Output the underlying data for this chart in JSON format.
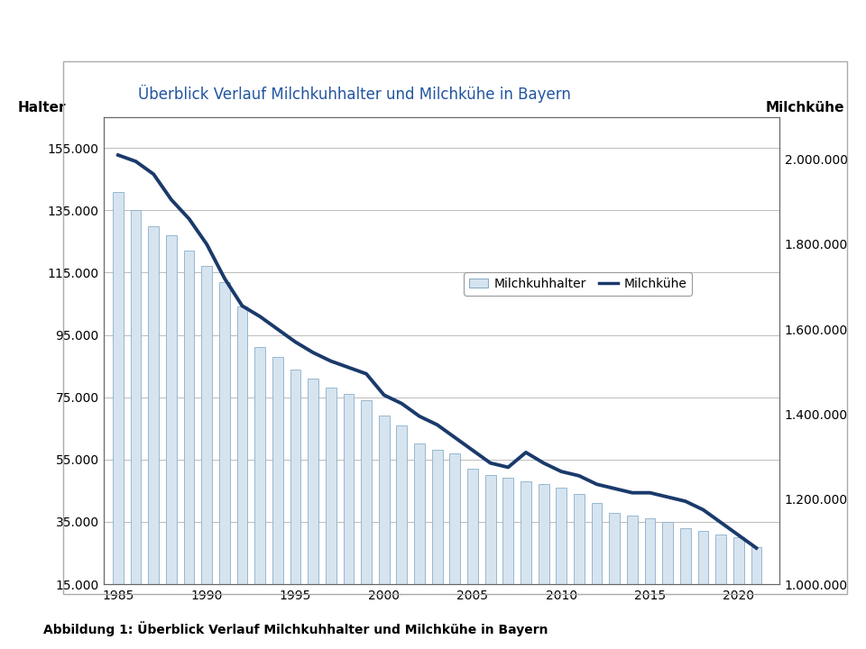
{
  "title": "Überblick Verlauf Milchkuhhalter und Milchkühe in Bayern",
  "caption": "Abbildung 1: Überblick Verlauf Milchkuhhalter und Milchkühe in Bayern",
  "ylabel_left": "Halter",
  "ylabel_right": "Milchkühe",
  "legend_bar": "Milchkuhhalter",
  "legend_line": "Milchkühe",
  "years": [
    1985,
    1986,
    1987,
    1988,
    1989,
    1990,
    1991,
    1992,
    1993,
    1994,
    1995,
    1996,
    1997,
    1998,
    1999,
    2000,
    2001,
    2002,
    2003,
    2004,
    2005,
    2006,
    2007,
    2008,
    2009,
    2010,
    2011,
    2012,
    2013,
    2014,
    2015,
    2016,
    2017,
    2018,
    2019,
    2020,
    2021
  ],
  "halter": [
    141000,
    135000,
    130000,
    127000,
    122000,
    117000,
    112000,
    104000,
    91000,
    88000,
    84000,
    81000,
    78000,
    76000,
    74000,
    69000,
    66000,
    60000,
    58000,
    57000,
    52000,
    50000,
    49000,
    48000,
    47000,
    46000,
    44000,
    41000,
    38000,
    37000,
    36000,
    35000,
    33000,
    32000,
    31000,
    30000,
    27000
  ],
  "milchkuehe": [
    2010000,
    1995000,
    1965000,
    1905000,
    1860000,
    1800000,
    1720000,
    1655000,
    1630000,
    1600000,
    1570000,
    1545000,
    1525000,
    1510000,
    1495000,
    1445000,
    1425000,
    1395000,
    1375000,
    1345000,
    1315000,
    1285000,
    1275000,
    1310000,
    1285000,
    1265000,
    1255000,
    1235000,
    1225000,
    1215000,
    1215000,
    1205000,
    1195000,
    1175000,
    1145000,
    1115000,
    1085000
  ],
  "ylim_left": [
    15000,
    165000
  ],
  "ylim_right": [
    1000000,
    2100000
  ],
  "yticks_left": [
    15000,
    35000,
    55000,
    75000,
    95000,
    115000,
    135000,
    155000
  ],
  "yticks_right": [
    1000000,
    1200000,
    1400000,
    1600000,
    1800000,
    2000000
  ],
  "xticks": [
    1985,
    1990,
    1995,
    2000,
    2005,
    2010,
    2015,
    2020
  ],
  "bar_color": "#d6e4f0",
  "bar_edge_color": "#8aafc8",
  "line_color": "#1a3a6b",
  "title_color": "#2255a0",
  "background_color": "#ffffff",
  "grid_color": "#bbbbbb",
  "outer_box_color": "#aaaaaa"
}
